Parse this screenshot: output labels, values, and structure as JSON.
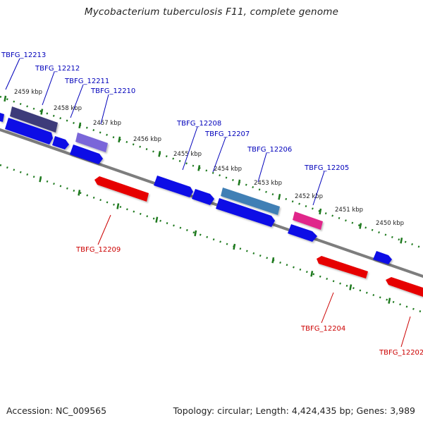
{
  "title": "Mycobacterium tuberculosis F11, complete genome",
  "footer": {
    "accession": "Accession: NC_009565",
    "summary": "Topology: circular; Length: 4,424,435 bp; Genes: 3,989"
  },
  "colors": {
    "background": "#ffffff",
    "backbone": "#8a8a8a",
    "tick": "#1f7a1f",
    "forward_gene": "#0a0ae6",
    "reverse_gene": "#e60000",
    "label_forward": "#0000bb",
    "label_reverse": "#cc0000",
    "scale_label": "#222222"
  },
  "scale_labels": [
    "2459 kbp",
    "2458 kbp",
    "2457 kbp",
    "2456 kbp",
    "2455 kbp",
    "2454 kbp",
    "2453 kbp",
    "2452 kbp",
    "2451 kbp",
    "2450 kbp"
  ],
  "gene_labels_forward": [
    "TBFG_12213",
    "TBFG_12212",
    "TBFG_12211",
    "TBFG_12210",
    "TBFG_12208",
    "TBFG_12207",
    "TBFG_12206",
    "TBFG_12205"
  ],
  "gene_labels_reverse": [
    "TBFG_12209",
    "TBFG_12204",
    "TBFG_12202"
  ],
  "feature_colors": {
    "TBFG_12213": "#3d3a7a",
    "TBFG_12211": "#7a66d9",
    "TBFG_12206": "#3f7fb5",
    "TBFG_12205": "#e0288a"
  }
}
